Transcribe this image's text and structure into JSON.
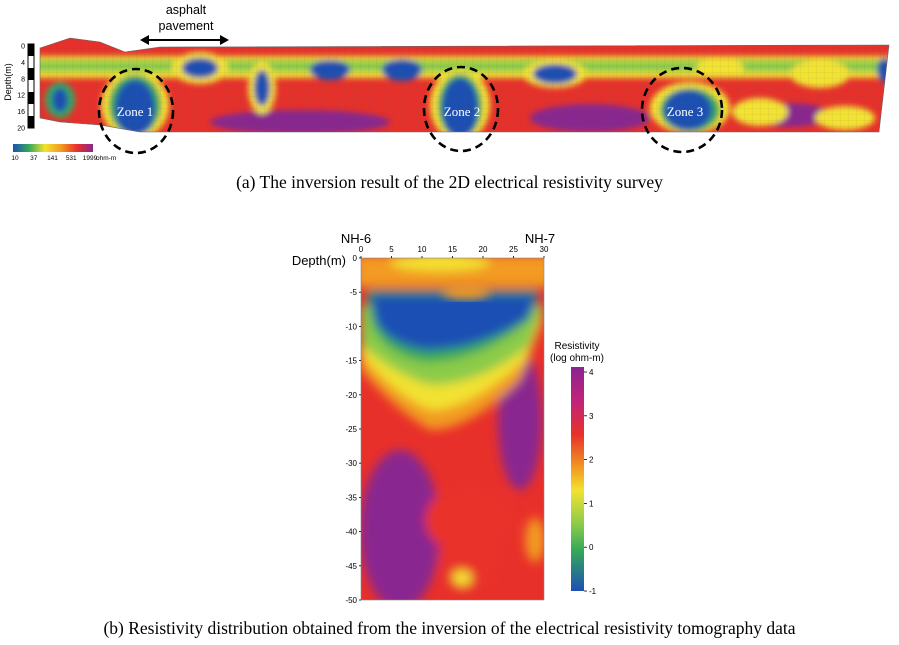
{
  "panel_a": {
    "annotation": [
      "asphalt",
      "pavement"
    ],
    "depth_label": "Depth(m)",
    "depth_ticks": [
      "0",
      "4",
      "8",
      "12",
      "16",
      "20"
    ],
    "zones": [
      "Zone 1",
      "Zone 2",
      "Zone 3"
    ],
    "colorbar_ticks": [
      "10",
      "37",
      "141",
      "531",
      "1999"
    ],
    "colorbar_unit": "ohm-m",
    "caption": "(a) The inversion result of the 2D electrical resistivity survey"
  },
  "panel_b": {
    "left_label": "NH-6",
    "right_label": "NH-7",
    "depth_label": "Depth(m)",
    "x_ticks": [
      "0",
      "5",
      "10",
      "15",
      "20",
      "25",
      "30"
    ],
    "y_ticks": [
      "0",
      "-5",
      "-10",
      "-15",
      "-20",
      "-25",
      "-30",
      "-35",
      "-40",
      "-45",
      "-50"
    ],
    "colorbar_title": [
      "Resistivity",
      "(log ohm-m)"
    ],
    "colorbar_ticks": [
      "4",
      "3",
      "2",
      "1",
      "0",
      "-1"
    ],
    "caption": "(b) Resistivity distribution obtained from the inversion of the electrical resistivity tomography data"
  },
  "colors": {
    "blue": "#1e4fb4",
    "green": "#35a85a",
    "yellow": "#f2e230",
    "orange": "#f29a20",
    "red": "#e8302a",
    "purple": "#8a2590"
  },
  "chart_data": [
    {
      "type": "heatmap",
      "title": "(a) The inversion result of the 2D electrical resistivity survey",
      "ylabel": "Depth(m)",
      "y_ticks": [
        0,
        4,
        8,
        12,
        16,
        20
      ],
      "ylim": [
        0,
        20
      ],
      "colorbar": {
        "ticks": [
          10,
          37,
          141,
          531,
          1999
        ],
        "unit": "ohm-m"
      },
      "annotations": [
        "asphalt pavement",
        "Zone 1",
        "Zone 2",
        "Zone 3"
      ]
    },
    {
      "type": "heatmap",
      "title": "(b) Resistivity distribution obtained from the inversion of the electrical resistivity tomography data",
      "ylabel": "Depth(m)",
      "x_ticks": [
        0,
        5,
        10,
        15,
        20,
        25,
        30
      ],
      "y_ticks": [
        0,
        -5,
        -10,
        -15,
        -20,
        -25,
        -30,
        -35,
        -40,
        -45,
        -50
      ],
      "xlim": [
        0,
        30
      ],
      "ylim": [
        -50,
        0
      ],
      "boreholes": [
        "NH-6",
        "NH-7"
      ],
      "colorbar": {
        "title": "Resistivity (log ohm-m)",
        "ticks": [
          4,
          3,
          2,
          1,
          0,
          -1
        ],
        "range": [
          -1,
          4
        ]
      }
    }
  ]
}
